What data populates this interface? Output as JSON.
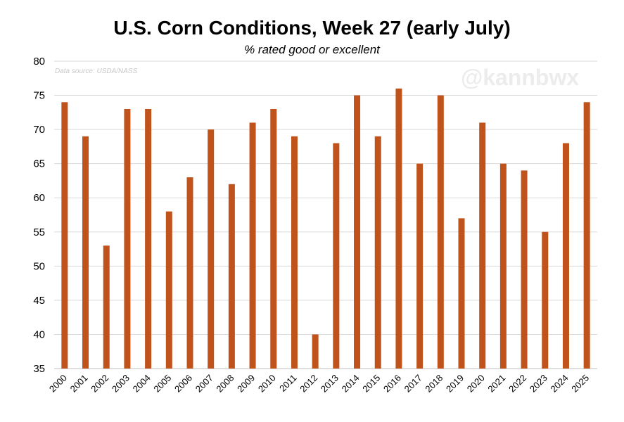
{
  "title": "U.S. Corn Conditions, Week 27 (early July)",
  "subtitle": "% rated good or excellent",
  "source_note": "Data source: USDA/NASS",
  "watermark": "@kannbwx",
  "colors": {
    "bar": "#C0531C",
    "grid": "#d9d9d9"
  },
  "chart_data": {
    "type": "bar",
    "title": "U.S. Corn Conditions, Week 27 (early July)",
    "subtitle": "% rated good or excellent",
    "categories": [
      "2000",
      "2001",
      "2002",
      "2003",
      "2004",
      "2005",
      "2006",
      "2007",
      "2008",
      "2009",
      "2010",
      "2011",
      "2012",
      "2013",
      "2014",
      "2015",
      "2016",
      "2017",
      "2018",
      "2019",
      "2020",
      "2021",
      "2022",
      "2023",
      "2024",
      "2025"
    ],
    "values": [
      74,
      69,
      53,
      73,
      73,
      58,
      63,
      70,
      62,
      71,
      73,
      69,
      40,
      68,
      75,
      69,
      76,
      65,
      75,
      57,
      71,
      65,
      64,
      55,
      68,
      74
    ],
    "xlabel": "",
    "ylabel": "",
    "ylim": [
      35,
      80
    ],
    "yticks": [
      35,
      40,
      45,
      50,
      55,
      60,
      65,
      70,
      75,
      80
    ],
    "grid": true
  }
}
